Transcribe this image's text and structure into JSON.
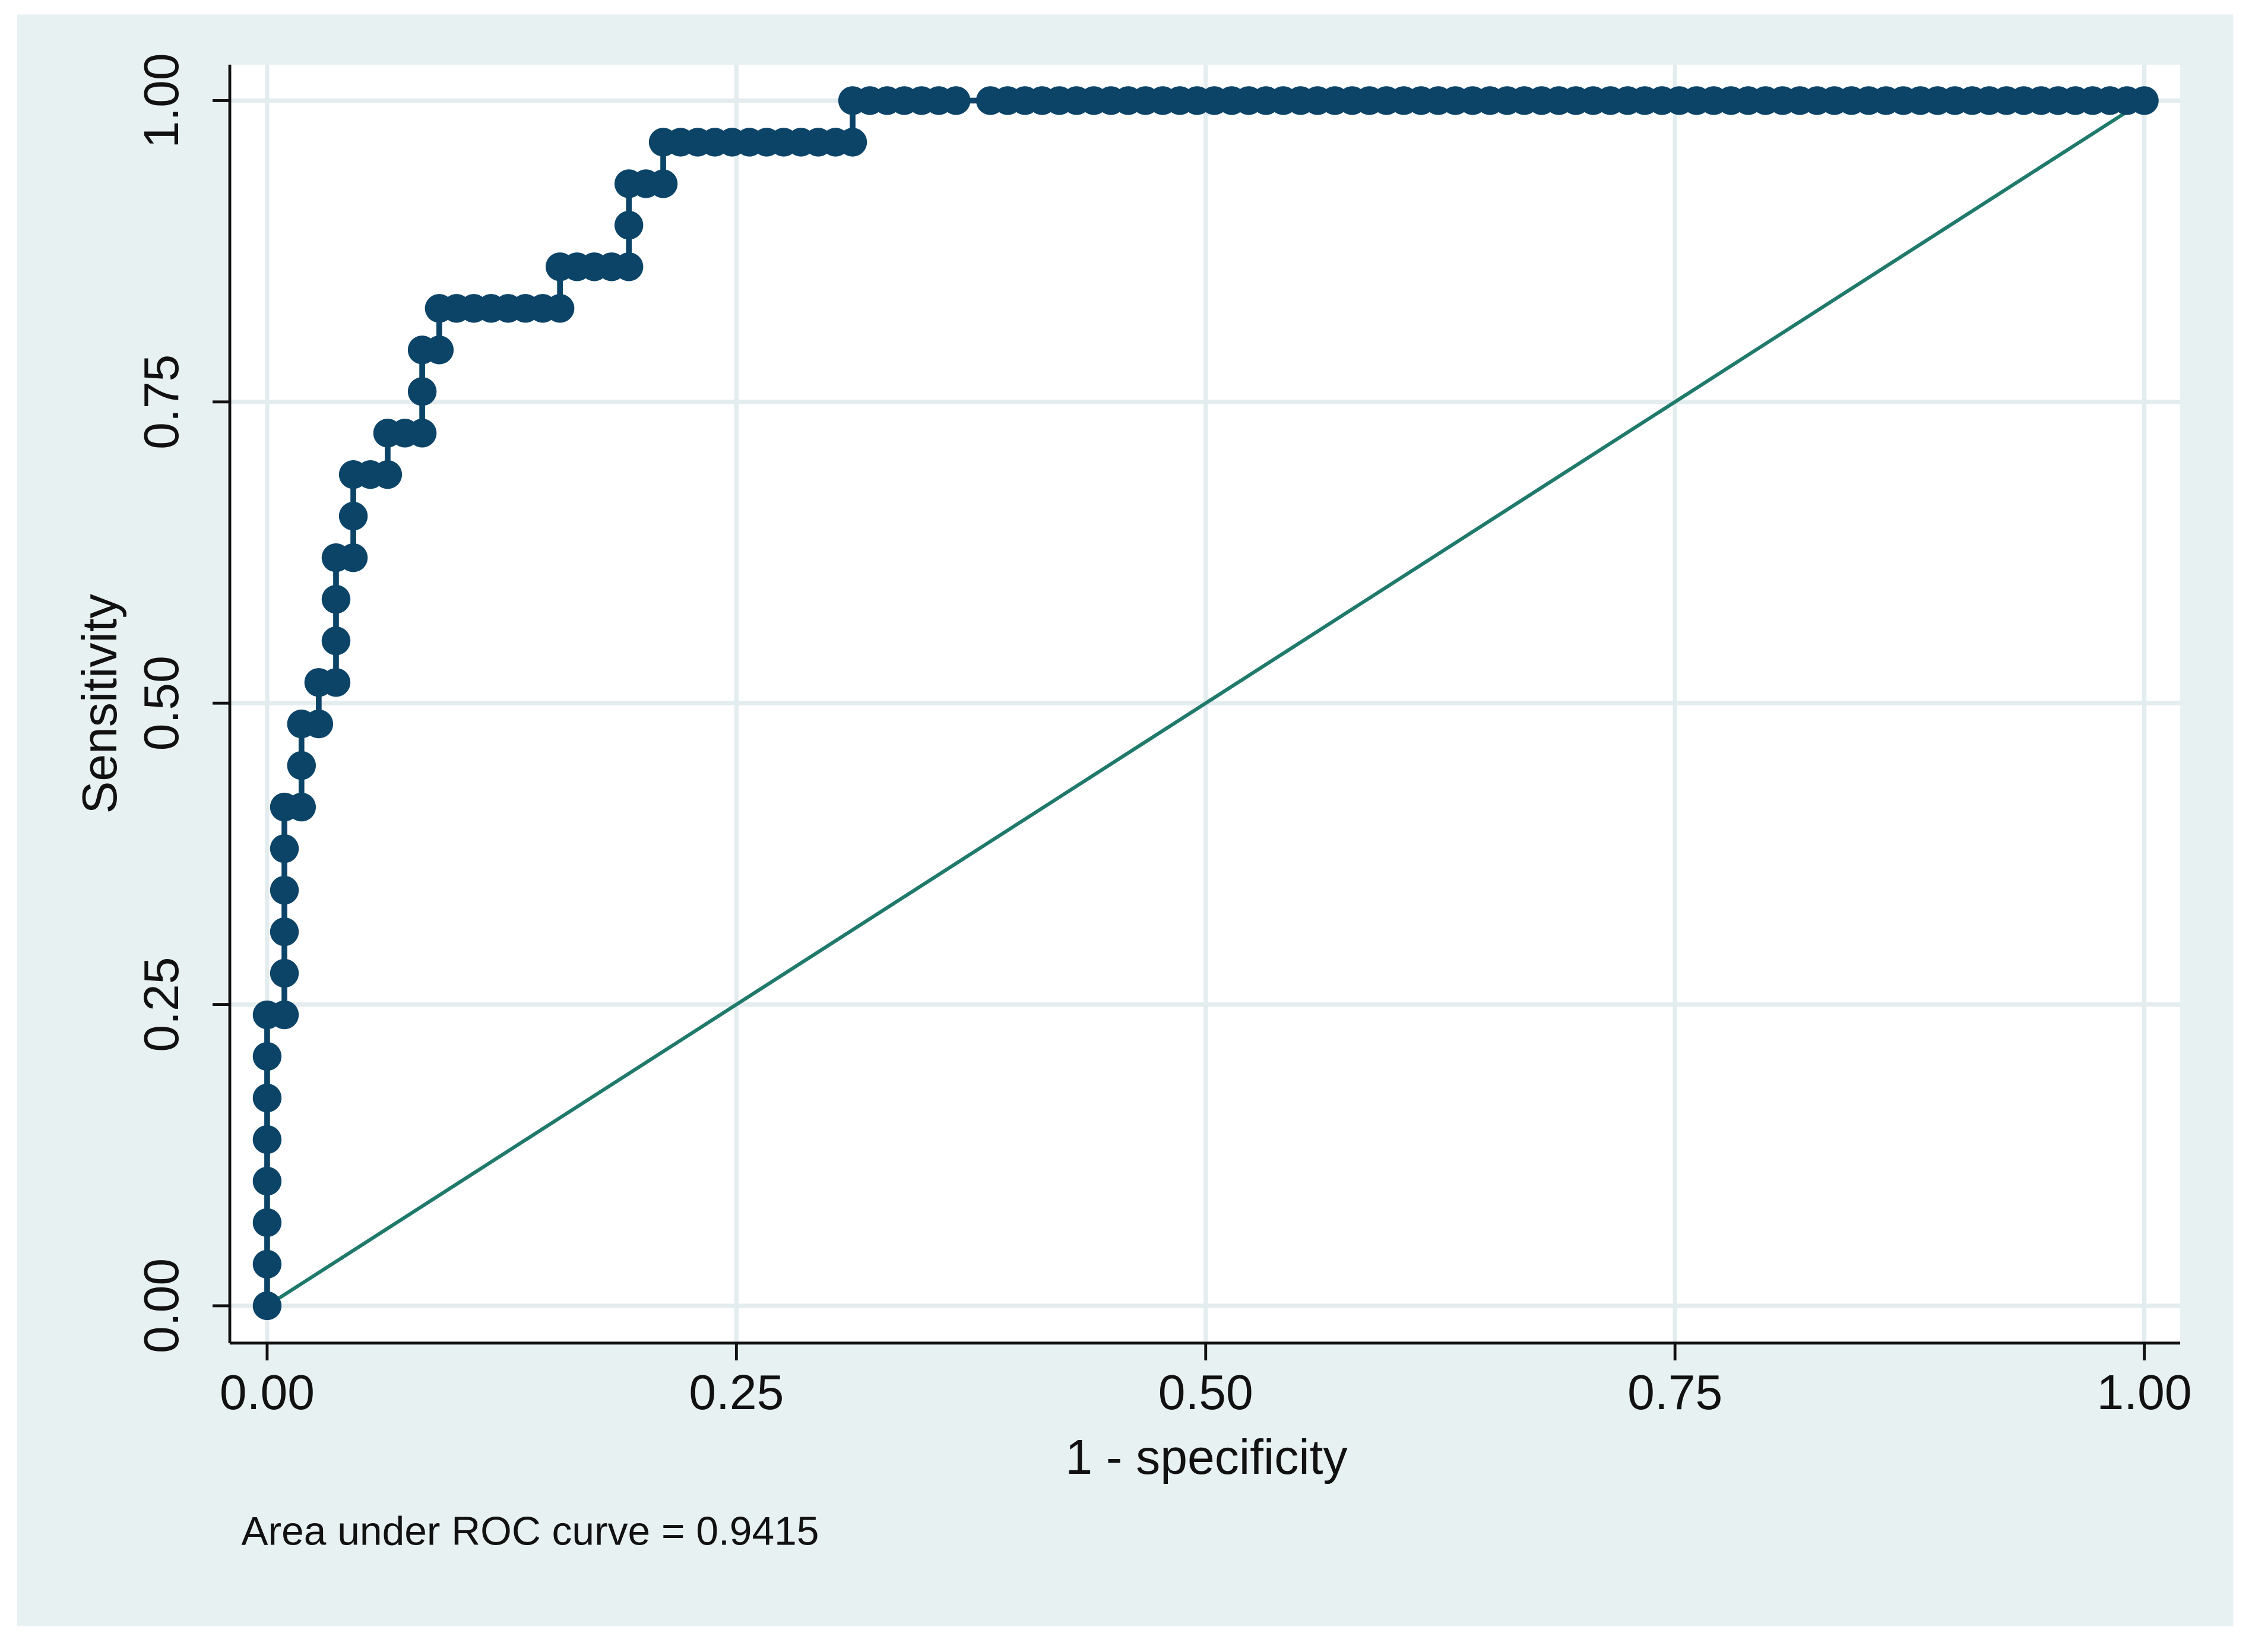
{
  "chart_data": {
    "type": "roc",
    "xlabel": "1 - specificity",
    "ylabel": "Sensitivity",
    "note": "Area under ROC curve = 0.9415",
    "xlim": [
      0,
      1
    ],
    "ylim": [
      0,
      1
    ],
    "xticks": [
      {
        "value": 0,
        "label": "0.00"
      },
      {
        "value": 0.25,
        "label": "0.25"
      },
      {
        "value": 0.5,
        "label": "0.50"
      },
      {
        "value": 0.75,
        "label": "0.75"
      },
      {
        "value": 1,
        "label": "1.00"
      }
    ],
    "yticks": [
      {
        "value": 0,
        "label": "0.00"
      },
      {
        "value": 0.25,
        "label": "0.25"
      },
      {
        "value": 0.5,
        "label": "0.50"
      },
      {
        "value": 0.75,
        "label": "0.75"
      },
      {
        "value": 1,
        "label": "1.00"
      }
    ],
    "grid": true,
    "series": [
      {
        "color": "#0c4468",
        "x": [
          0,
          0,
          0,
          0,
          0,
          0,
          0,
          0,
          0.0092,
          0.0092,
          0.0092,
          0.0092,
          0.0092,
          0.0092,
          0.0183,
          0.0183,
          0.0183,
          0.0275,
          0.0275,
          0.0367,
          0.0367,
          0.0367,
          0.0367,
          0.0459,
          0.0459,
          0.0459,
          0.055,
          0.0642,
          0.0642,
          0.0734,
          0.0826,
          0.0826,
          0.0826,
          0.0917,
          0.0917,
          0.1009,
          0.1101,
          0.1193,
          0.1284,
          0.1376,
          0.1468,
          0.156,
          0.156,
          0.1651,
          0.1743,
          0.1835,
          0.1927,
          0.1927,
          0.1927,
          0.2018,
          0.211,
          0.211,
          0.2202,
          0.2294,
          0.2385,
          0.2477,
          0.2569,
          0.2661,
          0.2752,
          0.2844,
          0.2936,
          0.3028,
          0.3119,
          0.3119,
          0.3211,
          0.3303,
          0.3394,
          0.3486,
          0.3578,
          0.367,
          0.3853,
          0.3945,
          0.4037,
          0.4128,
          0.422,
          0.4312,
          0.4404,
          0.4495,
          0.4587,
          0.4679,
          0.4771,
          0.4862,
          0.4954,
          0.5046,
          0.5138,
          0.5229,
          0.5321,
          0.5413,
          0.5505,
          0.5596,
          0.5688,
          0.578,
          0.5872,
          0.5963,
          0.6055,
          0.6147,
          0.6239,
          0.633,
          0.6422,
          0.6514,
          0.6606,
          0.6697,
          0.6789,
          0.6881,
          0.6972,
          0.7064,
          0.7156,
          0.7248,
          0.7339,
          0.7431,
          0.7523,
          0.7615,
          0.7706,
          0.7798,
          0.789,
          0.7982,
          0.8073,
          0.8165,
          0.8257,
          0.8349,
          0.844,
          0.8532,
          0.8624,
          0.8716,
          0.8807,
          0.8899,
          0.8991,
          0.9083,
          0.9174,
          0.9266,
          0.9358,
          0.945,
          0.9541,
          0.9633,
          0.9725,
          0.9817,
          0.9908,
          1
        ],
        "values": [
          0,
          0.0345,
          0.069,
          0.1034,
          0.1379,
          0.1724,
          0.2069,
          0.2414,
          0.2414,
          0.2759,
          0.3103,
          0.3448,
          0.3793,
          0.4138,
          0.4138,
          0.4483,
          0.4828,
          0.4828,
          0.5172,
          0.5172,
          0.5517,
          0.5862,
          0.6207,
          0.6207,
          0.6552,
          0.6897,
          0.6897,
          0.6897,
          0.7241,
          0.7241,
          0.7241,
          0.7586,
          0.7931,
          0.7931,
          0.8276,
          0.8276,
          0.8276,
          0.8276,
          0.8276,
          0.8276,
          0.8276,
          0.8276,
          0.8621,
          0.8621,
          0.8621,
          0.8621,
          0.8621,
          0.8966,
          0.931,
          0.931,
          0.931,
          0.9655,
          0.9655,
          0.9655,
          0.9655,
          0.9655,
          0.9655,
          0.9655,
          0.9655,
          0.9655,
          0.9655,
          0.9655,
          0.9655,
          1,
          1,
          1,
          1,
          1,
          1,
          1,
          1,
          1,
          1,
          1,
          1,
          1,
          1,
          1,
          1,
          1,
          1,
          1,
          1,
          1,
          1,
          1,
          1,
          1,
          1,
          1,
          1,
          1,
          1,
          1,
          1,
          1,
          1,
          1,
          1,
          1,
          1,
          1,
          1,
          1,
          1,
          1,
          1,
          1,
          1,
          1,
          1,
          1,
          1,
          1,
          1,
          1,
          1,
          1,
          1,
          1,
          1,
          1,
          1,
          1,
          1,
          1,
          1,
          1,
          1,
          1,
          1,
          1,
          1,
          1,
          1,
          1,
          1,
          1
        ]
      }
    ],
    "reference_line": {
      "color": "#1f7a6c",
      "x": [
        0,
        1
      ],
      "values": [
        0,
        1
      ]
    }
  }
}
